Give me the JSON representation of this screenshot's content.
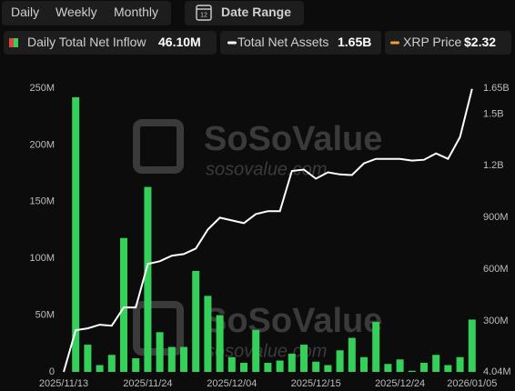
{
  "tabs": [
    "Daily",
    "Weekly",
    "Monthly"
  ],
  "date_range": "Date Range",
  "calendar_day": "12",
  "watermark": {
    "brand": "SoSoValue",
    "site": "sosovalue.com"
  },
  "chart_data": {
    "type": "bar",
    "categories": [
      "2025/11/13",
      null,
      null,
      null,
      null,
      null,
      null,
      "2025/11/24",
      null,
      null,
      null,
      null,
      null,
      null,
      "2025/12/04",
      null,
      null,
      null,
      null,
      null,
      null,
      "2025/12/15",
      null,
      null,
      null,
      null,
      null,
      null,
      "2025/12/24",
      null,
      null,
      null,
      null,
      null,
      "2026/01/05"
    ],
    "series": [
      {
        "name": "Daily Total Net Inflow",
        "latest": "46.10M",
        "type": "bar",
        "color": "#35d05a",
        "values": [
          0,
          242000000,
          24000000,
          6000000,
          15000000,
          118000000,
          12000000,
          163000000,
          35000000,
          22000000,
          22000000,
          89000000,
          67000000,
          50000000,
          13000000,
          8000000,
          37000000,
          8000000,
          10000000,
          16000000,
          24000000,
          9000000,
          6000000,
          19000000,
          30000000,
          13000000,
          44000000,
          7000000,
          11000000,
          1000000,
          8000000,
          15000000,
          6000000,
          13000000,
          46100000
        ]
      },
      {
        "name": "Total Net Assets",
        "latest": "1.65B",
        "type": "line",
        "axis": "y2",
        "color": "#ffffff",
        "values": [
          4040000,
          246000000,
          257000000,
          278000000,
          272000000,
          378000000,
          378000000,
          630000000,
          646000000,
          678000000,
          688000000,
          720000000,
          830000000,
          899000000,
          883000000,
          867000000,
          920000000,
          936000000,
          936000000,
          1170000000,
          1178000000,
          1125000000,
          1162000000,
          1150000000,
          1146000000,
          1214000000,
          1240000000,
          1240000000,
          1240000000,
          1230000000,
          1235000000,
          1272000000,
          1240000000,
          1367000000,
          1646000000
        ]
      },
      {
        "name": "XRP Price",
        "latest": "$2.32",
        "type": "legend-only",
        "color": "#f0a030"
      }
    ],
    "ylim": [
      0,
      250000000
    ],
    "yticks": [
      0,
      {
        "value": 50000000,
        "label": "50M"
      },
      {
        "value": 100000000,
        "label": "100M"
      },
      {
        "value": 150000000,
        "label": "150M"
      },
      {
        "value": 200000000,
        "label": "200M"
      },
      {
        "value": 250000000,
        "label": "250M"
      }
    ],
    "y2lim": [
      4040000,
      1650000000
    ],
    "y2ticks": [
      {
        "value": 4040000,
        "label": "4.04M"
      },
      {
        "value": 300000000,
        "label": "300M"
      },
      {
        "value": 600000000,
        "label": "600M"
      },
      {
        "value": 900000000,
        "label": "900M"
      },
      {
        "value": 1200000000,
        "label": "1.2B"
      },
      {
        "value": 1500000000,
        "label": "1.5B"
      },
      {
        "value": 1650000000,
        "label": "1.65B"
      }
    ],
    "grid": false
  }
}
